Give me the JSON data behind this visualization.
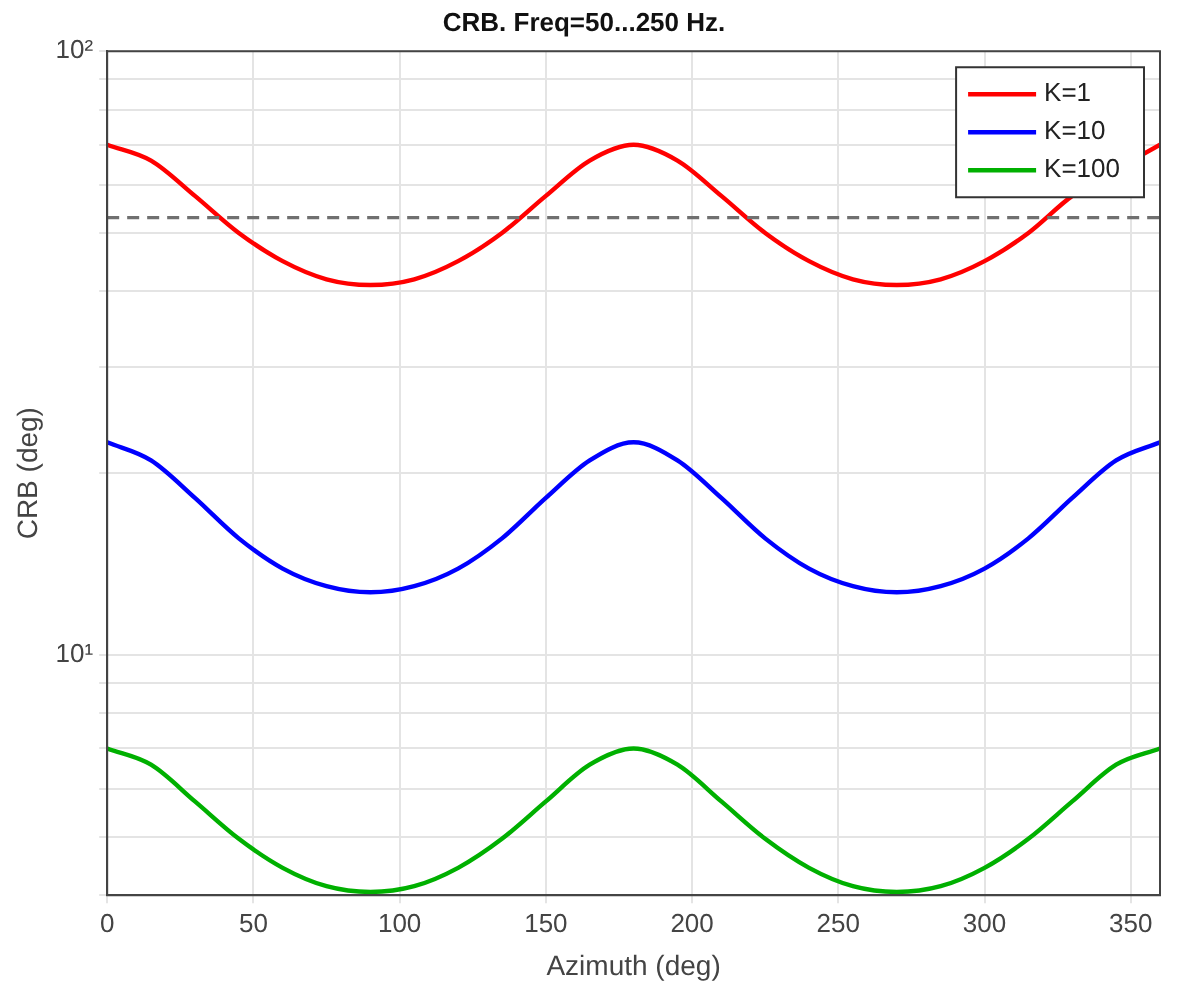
{
  "chart_data": {
    "type": "line",
    "title": "CRB. Freq=50...250 Hz.",
    "xlabel": "Azimuth (deg)",
    "ylabel": "CRB (deg)",
    "x": [
      0,
      15,
      30,
      45,
      60,
      75,
      90,
      105,
      120,
      135,
      150,
      165,
      180,
      195,
      210,
      225,
      240,
      255,
      270,
      285,
      300,
      315,
      330,
      345,
      360
    ],
    "series": [
      {
        "name": "K=1",
        "color": "#ff0000",
        "values": [
          70,
          65.9,
          57.6,
          50,
          44.9,
          41.9,
          41,
          41.9,
          44.9,
          50,
          57.6,
          65.9,
          70,
          65.9,
          57.6,
          50,
          44.9,
          41.9,
          41,
          41.9,
          44.9,
          50,
          57.6,
          null,
          70
        ]
      },
      {
        "name": "K=10",
        "color": "#0000ff",
        "values": [
          22.5,
          21,
          18.2,
          15.6,
          13.9,
          13,
          12.7,
          13,
          13.9,
          15.6,
          18.2,
          21,
          22.5,
          21,
          18.2,
          15.6,
          13.9,
          13,
          12.7,
          13,
          13.9,
          15.6,
          18.2,
          21,
          22.5
        ]
      },
      {
        "name": "K=100",
        "color": "#00b000",
        "values": [
          7,
          6.58,
          5.72,
          4.96,
          4.44,
          4.14,
          4.05,
          4.14,
          4.44,
          4.96,
          5.72,
          6.58,
          7,
          6.58,
          5.72,
          4.96,
          4.44,
          4.14,
          4.05,
          4.14,
          4.44,
          4.96,
          5.72,
          6.58,
          7
        ]
      }
    ],
    "log": "y",
    "xlim": [
      0,
      360
    ],
    "xticks": [
      0,
      50,
      100,
      150,
      200,
      250,
      300,
      350
    ],
    "ylim": [
      4,
      100
    ],
    "yticks": [
      {
        "value": 4,
        "label": null
      },
      {
        "value": 5,
        "label": null
      },
      {
        "value": 6,
        "label": null
      },
      {
        "value": 7,
        "label": null
      },
      {
        "value": 8,
        "label": null
      },
      {
        "value": 9,
        "label": null
      },
      {
        "value": 10,
        "label": "10¹"
      },
      {
        "value": 20,
        "label": null
      },
      {
        "value": 30,
        "label": null
      },
      {
        "value": 40,
        "label": null
      },
      {
        "value": 50,
        "label": null
      },
      {
        "value": 60,
        "label": null
      },
      {
        "value": 70,
        "label": null
      },
      {
        "value": 80,
        "label": null
      },
      {
        "value": 90,
        "label": null
      },
      {
        "value": 100,
        "label": "10²"
      }
    ],
    "ref_lines": [
      {
        "axis": "y",
        "value": 53,
        "color": "#707070",
        "line_style": "dashed"
      }
    ],
    "grid": true,
    "legend": "top right",
    "line_style": "solid",
    "marker": "none"
  }
}
